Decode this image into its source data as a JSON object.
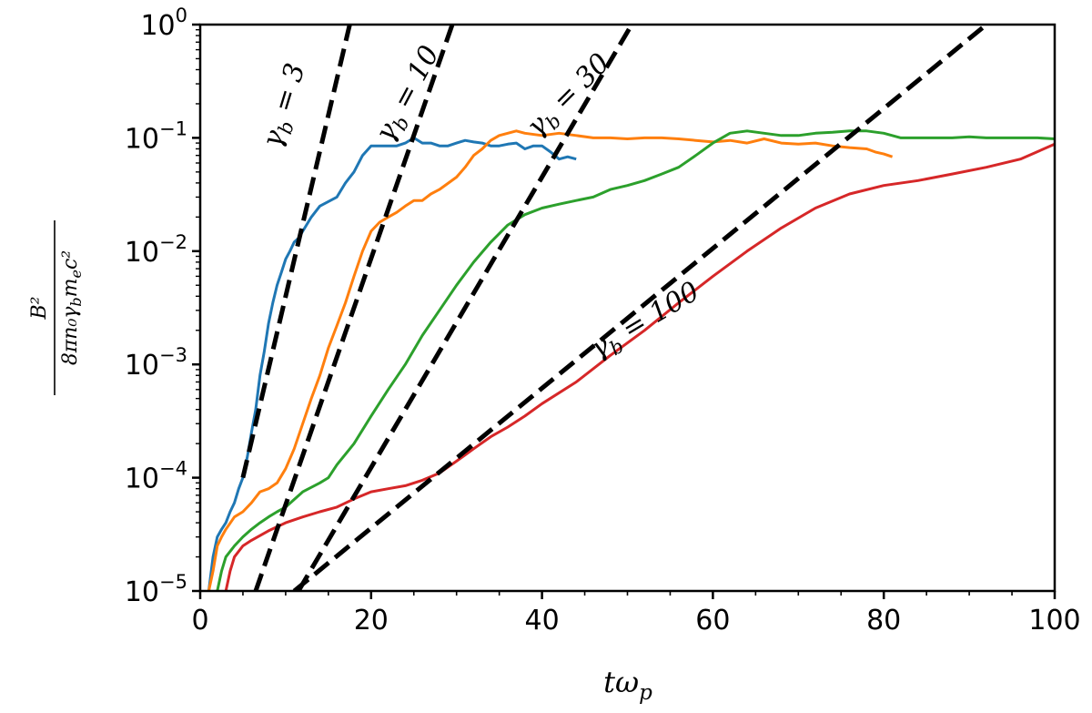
{
  "chart_data": {
    "type": "line",
    "xlabel": "tω_p",
    "ylabel_numerator": "B²",
    "ylabel_denominator": "8πn₀γ_bm_ec²",
    "xlim": [
      0,
      100
    ],
    "ylim": [
      1e-05,
      1
    ],
    "y_scale": "log",
    "grid": false,
    "x_ticks": [
      0,
      20,
      40,
      60,
      80,
      100
    ],
    "x_tick_labels": [
      "0",
      "20",
      "40",
      "60",
      "80",
      "100"
    ],
    "y_ticks": [
      1e-05,
      0.0001,
      0.001,
      0.01,
      0.1,
      1
    ],
    "y_tick_labels": [
      {
        "base": "10",
        "exp": "−5"
      },
      {
        "base": "10",
        "exp": "−4"
      },
      {
        "base": "10",
        "exp": "−3"
      },
      {
        "base": "10",
        "exp": "−2"
      },
      {
        "base": "10",
        "exp": "−1"
      },
      {
        "base": "10",
        "exp": "0"
      }
    ],
    "series": [
      {
        "color": "#1f77b4",
        "style": "solid",
        "x": [
          1.0,
          1.5,
          2.0,
          2.5,
          3.0,
          3.5,
          4.0,
          4.5,
          5.0,
          5.5,
          6.0,
          6.5,
          7.0,
          7.5,
          8.0,
          8.5,
          9.0,
          9.5,
          10.0,
          10.5,
          11.0,
          11.5,
          12.0,
          13.0,
          14.0,
          16.0,
          17.0,
          18.0,
          19.0,
          20.0,
          21.0,
          23.0,
          24.0,
          25.0,
          26.0,
          27.0,
          28.0,
          29.0,
          30.0,
          31.0,
          32.0,
          33.0,
          34.0,
          35.0,
          36.0,
          37.0,
          38.0,
          39.0,
          40.0,
          41.0,
          42.0,
          43.0,
          44.0
        ],
        "y": [
          1e-05,
          2e-05,
          3e-05,
          3.5e-05,
          4e-05,
          5e-05,
          6e-05,
          8e-05,
          0.0001,
          0.00015,
          0.00025,
          0.0004,
          0.0008,
          0.0013,
          0.0023,
          0.0035,
          0.005,
          0.0065,
          0.0085,
          0.01,
          0.012,
          0.013,
          0.015,
          0.02,
          0.025,
          0.03,
          0.04,
          0.05,
          0.07,
          0.085,
          0.085,
          0.085,
          0.09,
          0.1,
          0.09,
          0.09,
          0.085,
          0.085,
          0.09,
          0.095,
          0.092,
          0.09,
          0.085,
          0.085,
          0.088,
          0.09,
          0.08,
          0.085,
          0.085,
          0.075,
          0.065,
          0.068,
          0.065
        ]
      },
      {
        "color": "#ff7f0e",
        "style": "solid",
        "x": [
          1.0,
          1.5,
          2.0,
          2.5,
          3.0,
          4.0,
          5.0,
          6.0,
          7.0,
          8.0,
          9.0,
          10.0,
          11.0,
          12.0,
          13.0,
          14.0,
          15.0,
          16.0,
          17.0,
          18.0,
          19.0,
          20.0,
          21.0,
          22.0,
          23.0,
          24.0,
          25.0,
          26.0,
          27.0,
          28.0,
          30.0,
          31.0,
          32.0,
          33.0,
          34.0,
          35.0,
          36.0,
          37.0,
          38.0,
          40.0,
          42.0,
          44.0,
          46.0,
          48.0,
          50.0,
          52.0,
          54.0,
          56.0,
          58.0,
          60.0,
          62.0,
          64.0,
          66.0,
          68.0,
          70.0,
          72.0,
          74.0,
          76.0,
          78.0,
          79.0,
          80.0,
          81.0
        ],
        "y": [
          1e-05,
          1.5e-05,
          2.5e-05,
          3e-05,
          3.5e-05,
          4.5e-05,
          5e-05,
          6e-05,
          7.5e-05,
          8e-05,
          9e-05,
          0.00012,
          0.00018,
          0.0003,
          0.0005,
          0.0008,
          0.0014,
          0.0022,
          0.0035,
          0.006,
          0.01,
          0.015,
          0.018,
          0.02,
          0.022,
          0.025,
          0.028,
          0.028,
          0.032,
          0.035,
          0.045,
          0.055,
          0.07,
          0.08,
          0.095,
          0.105,
          0.11,
          0.115,
          0.11,
          0.105,
          0.11,
          0.105,
          0.1,
          0.1,
          0.098,
          0.1,
          0.1,
          0.098,
          0.095,
          0.092,
          0.095,
          0.09,
          0.098,
          0.09,
          0.088,
          0.09,
          0.085,
          0.082,
          0.08,
          0.075,
          0.072,
          0.068
        ]
      },
      {
        "color": "#2ca02c",
        "style": "solid",
        "x": [
          2.0,
          2.5,
          3.0,
          4.0,
          5.0,
          6.0,
          7.0,
          8.0,
          9.0,
          10.0,
          12.0,
          14.0,
          15.0,
          16.0,
          18.0,
          20.0,
          22.0,
          24.0,
          26.0,
          28.0,
          30.0,
          32.0,
          34.0,
          36.0,
          38.0,
          40.0,
          42.0,
          44.0,
          46.0,
          48.0,
          50.0,
          52.0,
          54.0,
          56.0,
          58.0,
          60.0,
          62.0,
          64.0,
          66.0,
          68.0,
          70.0,
          72.0,
          74.0,
          76.0,
          78.0,
          80.0,
          82.0,
          84.0,
          86.0,
          88.0,
          90.0,
          92.0,
          94.0,
          96.0,
          98.0,
          100.0
        ],
        "y": [
          1e-05,
          1.5e-05,
          2e-05,
          2.5e-05,
          3e-05,
          3.5e-05,
          4e-05,
          4.5e-05,
          5e-05,
          5.5e-05,
          7.5e-05,
          9e-05,
          0.0001,
          0.00013,
          0.0002,
          0.00035,
          0.0006,
          0.001,
          0.0018,
          0.003,
          0.005,
          0.008,
          0.012,
          0.017,
          0.021,
          0.024,
          0.026,
          0.028,
          0.03,
          0.035,
          0.038,
          0.042,
          0.048,
          0.055,
          0.07,
          0.09,
          0.11,
          0.115,
          0.11,
          0.105,
          0.105,
          0.11,
          0.112,
          0.115,
          0.115,
          0.11,
          0.1,
          0.1,
          0.1,
          0.1,
          0.102,
          0.1,
          0.1,
          0.1,
          0.1,
          0.098
        ]
      },
      {
        "color": "#d62728",
        "style": "solid",
        "x": [
          3.0,
          3.5,
          4.0,
          5.0,
          6.0,
          8.0,
          10.0,
          12.0,
          14.0,
          16.0,
          18.0,
          20.0,
          22.0,
          24.0,
          26.0,
          28.0,
          30.0,
          32.0,
          34.0,
          36.0,
          38.0,
          40.0,
          44.0,
          48.0,
          52.0,
          56.0,
          60.0,
          64.0,
          68.0,
          72.0,
          76.0,
          80.0,
          84.0,
          88.0,
          92.0,
          96.0,
          100.0
        ],
        "y": [
          1e-05,
          1.5e-05,
          2e-05,
          2.5e-05,
          2.8e-05,
          3.4e-05,
          4e-05,
          4.5e-05,
          5e-05,
          5.5e-05,
          6.5e-05,
          7.5e-05,
          8e-05,
          8.5e-05,
          9.5e-05,
          0.00011,
          0.00014,
          0.00018,
          0.00023,
          0.00028,
          0.00035,
          0.00045,
          0.0007,
          0.0012,
          0.002,
          0.0035,
          0.006,
          0.01,
          0.016,
          0.024,
          0.032,
          0.038,
          0.042,
          0.048,
          0.055,
          0.065,
          0.088
        ]
      },
      {
        "color": "#000000",
        "style": "dashed",
        "x": [
          5.0,
          17.5
        ],
        "y": [
          0.0001,
          1.0
        ]
      },
      {
        "color": "#000000",
        "style": "dashed",
        "x": [
          6.5,
          29.5
        ],
        "y": [
          1e-05,
          1.0
        ]
      },
      {
        "color": "#000000",
        "style": "dashed",
        "x": [
          11.5,
          50.5
        ],
        "y": [
          1e-05,
          1.0
        ]
      },
      {
        "color": "#000000",
        "style": "dashed",
        "x": [
          11.0,
          92.0
        ],
        "y": [
          1e-05,
          1.0
        ]
      }
    ],
    "annotations": [
      {
        "text": "γ_b = 3",
        "base": "γ",
        "sub": "b",
        "rest": " = 3",
        "x": 9.3,
        "y": 0.0794,
        "angle": -73
      },
      {
        "text": "γ_b = 10",
        "base": "γ",
        "sub": "b",
        "rest": " = 10",
        "x": 22.3,
        "y": 0.0891,
        "angle": -62
      },
      {
        "text": "γ_b = 30",
        "base": "γ",
        "sub": "b",
        "rest": " = 30",
        "x": 39.5,
        "y": 0.1,
        "angle": -45
      },
      {
        "text": "γ_b = 100",
        "base": "γ",
        "sub": "b",
        "rest": " = 100",
        "x": 46.5,
        "y": 0.00112,
        "angle": -31
      }
    ]
  }
}
